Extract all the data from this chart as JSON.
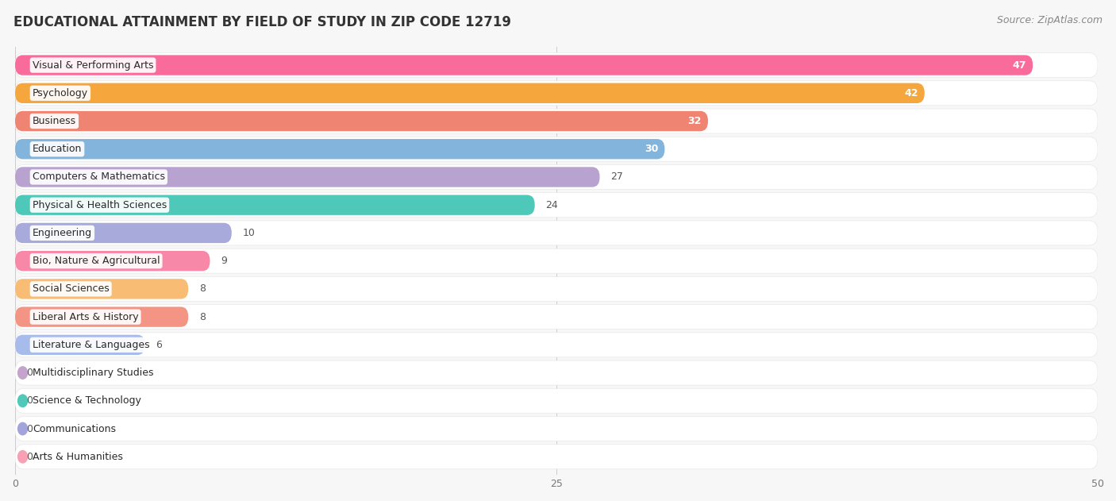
{
  "title": "EDUCATIONAL ATTAINMENT BY FIELD OF STUDY IN ZIP CODE 12719",
  "source": "Source: ZipAtlas.com",
  "categories": [
    "Visual & Performing Arts",
    "Psychology",
    "Business",
    "Education",
    "Computers & Mathematics",
    "Physical & Health Sciences",
    "Engineering",
    "Bio, Nature & Agricultural",
    "Social Sciences",
    "Liberal Arts & History",
    "Literature & Languages",
    "Multidisciplinary Studies",
    "Science & Technology",
    "Communications",
    "Arts & Humanities"
  ],
  "values": [
    47,
    42,
    32,
    30,
    27,
    24,
    10,
    9,
    8,
    8,
    6,
    0,
    0,
    0,
    0
  ],
  "bar_colors": [
    "#F96B9A",
    "#F5A63C",
    "#F08472",
    "#82B4DC",
    "#B8A2D0",
    "#4EC8B8",
    "#A8AADC",
    "#F888A8",
    "#F8BC74",
    "#F49484",
    "#A8BCEC",
    "#C4A4CC",
    "#52C8B8",
    "#A4A4DC",
    "#F8A0B4"
  ],
  "xlim": [
    0,
    50
  ],
  "xticks": [
    0,
    25,
    50
  ],
  "background_color": "#f7f7f7",
  "row_bg_color": "#ffffff",
  "title_fontsize": 12,
  "source_fontsize": 9,
  "label_fontsize": 9,
  "value_fontsize": 9
}
